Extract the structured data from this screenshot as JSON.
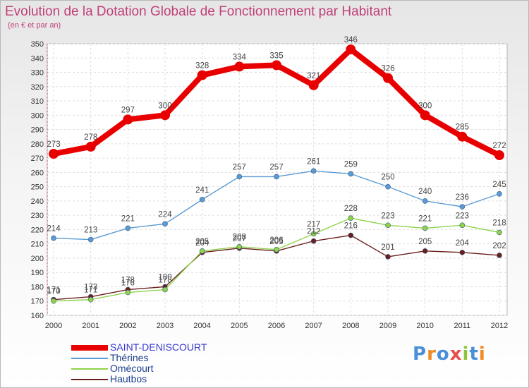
{
  "title": "Evolution de la Dotation Globale de Fonctionnement par Habitant",
  "subtitle": "(en € et par an)",
  "logo": {
    "letters": [
      "P",
      "r",
      "o",
      "x",
      "i",
      "t",
      "i"
    ],
    "colors": [
      "#4a90d9",
      "#f08a24",
      "#4a90d9",
      "#e84c4c",
      "#8cc63f",
      "#4a90d9",
      "#f08a24"
    ]
  },
  "chart_data": {
    "type": "line",
    "categories": [
      "2000",
      "2001",
      "2002",
      "2003",
      "2004",
      "2005",
      "2006",
      "2007",
      "2008",
      "2009",
      "2010",
      "2011",
      "2012"
    ],
    "ylim": [
      160,
      350
    ],
    "yticks": [
      160,
      170,
      180,
      190,
      200,
      210,
      220,
      230,
      240,
      250,
      260,
      270,
      280,
      290,
      300,
      310,
      320,
      330,
      340,
      350
    ],
    "grid": true,
    "legend_position": "bottom-left",
    "series": [
      {
        "name": "SAINT-DENISCOURT",
        "color": "#e80000",
        "label_color": "#3a3acc",
        "width": "thick",
        "values": [
          273,
          278,
          297,
          300,
          328,
          334,
          335,
          321,
          346,
          326,
          300,
          285,
          272
        ]
      },
      {
        "name": "Thérines",
        "color": "#5b9bd5",
        "label_color": "#1a3e8c",
        "width": "thin",
        "values": [
          214,
          213,
          221,
          224,
          241,
          257,
          257,
          261,
          259,
          250,
          240,
          236,
          245
        ]
      },
      {
        "name": "Omécourt",
        "color": "#8ed34a",
        "label_color": "#1a3e8c",
        "width": "thin",
        "values": [
          170,
          171,
          176,
          178,
          205,
          208,
          206,
          217,
          228,
          223,
          221,
          223,
          218
        ]
      },
      {
        "name": "Hautbos",
        "color": "#6b1e1e",
        "label_color": "#1a3e8c",
        "width": "thin",
        "values": [
          171,
          173,
          178,
          180,
          204,
          207,
          205,
          212,
          216,
          201,
          205,
          204,
          202
        ]
      }
    ]
  }
}
